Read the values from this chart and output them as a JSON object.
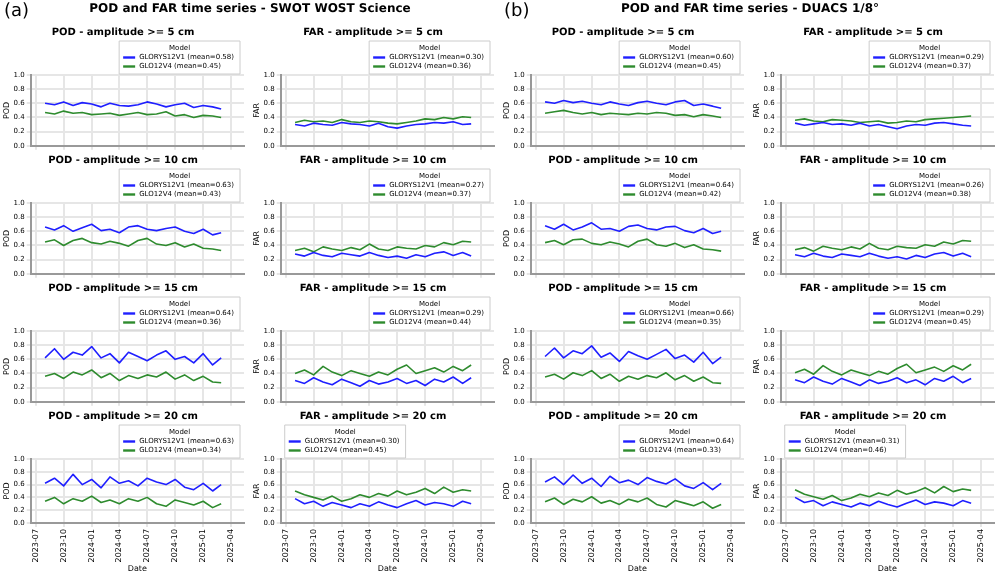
{
  "chart_data": [
    {
      "type": "line",
      "title": "POD - amplitude >= 5 cm",
      "ylabel": "POD",
      "annotations": [
        "(a)",
        "POD and FAR time series - SWOT WOST Science"
      ],
      "legend_title": "Model",
      "legend": "top right",
      "grid": true,
      "tick_labels": "y",
      "x": [
        "2023-08",
        "2023-09",
        "2023-10",
        "2023-11",
        "2023-12",
        "2024-01",
        "2024-02",
        "2024-03",
        "2024-04",
        "2024-05",
        "2024-06",
        "2024-07",
        "2024-08",
        "2024-09",
        "2024-10",
        "2024-11",
        "2024-12",
        "2025-01",
        "2025-02",
        "2025-03"
      ],
      "xlim": [
        "2023-06-15",
        "2025-05-15"
      ],
      "xticks": [
        "2023-07",
        "2023-10",
        "2024-01",
        "2024-04",
        "2024-07",
        "2024-10",
        "2025-01",
        "2025-04"
      ],
      "ylim": [
        0,
        1
      ],
      "yticks": [
        {
          "value": 0,
          "label": "0.0"
        },
        {
          "value": 0.2,
          "label": "0.2"
        },
        {
          "value": 0.4,
          "label": "0.4"
        },
        {
          "value": 0.6,
          "label": "0.6"
        },
        {
          "value": 0.8,
          "label": "0.8"
        },
        {
          "value": 1,
          "label": "1.0"
        }
      ],
      "series": [
        {
          "name": "GLORYS12V1 (mean=0.58)",
          "color": "#1f1fff",
          "values": [
            0.6,
            0.58,
            0.62,
            0.57,
            0.61,
            0.59,
            0.55,
            0.6,
            0.57,
            0.56,
            0.58,
            0.62,
            0.59,
            0.55,
            0.58,
            0.6,
            0.54,
            0.57,
            0.55,
            0.52
          ]
        },
        {
          "name": "GLO12V4 (mean=0.45)",
          "color": "#2e8b2e",
          "values": [
            0.47,
            0.45,
            0.49,
            0.46,
            0.47,
            0.44,
            0.45,
            0.46,
            0.43,
            0.45,
            0.47,
            0.44,
            0.45,
            0.48,
            0.42,
            0.44,
            0.4,
            0.43,
            0.42,
            0.4
          ]
        }
      ]
    },
    {
      "type": "line",
      "title": "FAR - amplitude >= 5 cm",
      "ylabel": "FAR",
      "legend_title": "Model",
      "legend": "top right",
      "grid": true,
      "tick_labels": "y",
      "x": [
        "2023-08",
        "2023-09",
        "2023-10",
        "2023-11",
        "2023-12",
        "2024-01",
        "2024-02",
        "2024-03",
        "2024-04",
        "2024-05",
        "2024-06",
        "2024-07",
        "2024-08",
        "2024-09",
        "2024-10",
        "2024-11",
        "2024-12",
        "2025-01",
        "2025-02",
        "2025-03"
      ],
      "xlim": [
        "2023-06-15",
        "2025-05-15"
      ],
      "xticks": [
        "2023-07",
        "2023-10",
        "2024-01",
        "2024-04",
        "2024-07",
        "2024-10",
        "2025-01",
        "2025-04"
      ],
      "ylim": [
        0,
        1
      ],
      "yticks": [
        {
          "value": 0,
          "label": "0.0"
        },
        {
          "value": 0.2,
          "label": "0.2"
        },
        {
          "value": 0.4,
          "label": "0.4"
        },
        {
          "value": 0.6,
          "label": "0.6"
        },
        {
          "value": 0.8,
          "label": "0.8"
        },
        {
          "value": 1,
          "label": "1.0"
        }
      ],
      "series": [
        {
          "name": "GLORYS12V1 (mean=0.30)",
          "color": "#1f1fff",
          "values": [
            0.3,
            0.28,
            0.32,
            0.3,
            0.29,
            0.33,
            0.31,
            0.3,
            0.28,
            0.32,
            0.27,
            0.25,
            0.28,
            0.3,
            0.31,
            0.33,
            0.32,
            0.34,
            0.3,
            0.31
          ]
        },
        {
          "name": "GLO12V4 (mean=0.36)",
          "color": "#2e8b2e",
          "values": [
            0.33,
            0.36,
            0.34,
            0.35,
            0.33,
            0.37,
            0.34,
            0.33,
            0.35,
            0.34,
            0.32,
            0.31,
            0.33,
            0.35,
            0.38,
            0.37,
            0.4,
            0.38,
            0.41,
            0.4
          ]
        }
      ]
    },
    {
      "type": "line",
      "title": "POD - amplitude >= 5 cm",
      "ylabel": "POD",
      "annotations": [
        "(b)",
        "POD and FAR time series - DUACS 1/8°"
      ],
      "legend_title": "Model",
      "legend": "top right",
      "grid": true,
      "tick_labels": "y",
      "x": [
        "2023-08",
        "2023-09",
        "2023-10",
        "2023-11",
        "2023-12",
        "2024-01",
        "2024-02",
        "2024-03",
        "2024-04",
        "2024-05",
        "2024-06",
        "2024-07",
        "2024-08",
        "2024-09",
        "2024-10",
        "2024-11",
        "2024-12",
        "2025-01",
        "2025-02",
        "2025-03"
      ],
      "xlim": [
        "2023-06-15",
        "2025-05-15"
      ],
      "xticks": [
        "2023-07",
        "2023-10",
        "2024-01",
        "2024-04",
        "2024-07",
        "2024-10",
        "2025-01",
        "2025-04"
      ],
      "ylim": [
        0,
        1
      ],
      "yticks": [
        {
          "value": 0,
          "label": "0.0"
        },
        {
          "value": 0.2,
          "label": "0.2"
        },
        {
          "value": 0.4,
          "label": "0.4"
        },
        {
          "value": 0.6,
          "label": "0.6"
        },
        {
          "value": 0.8,
          "label": "0.8"
        },
        {
          "value": 1,
          "label": "1.0"
        }
      ],
      "series": [
        {
          "name": "GLORYS12V1 (mean=0.60)",
          "color": "#1f1fff",
          "values": [
            0.62,
            0.6,
            0.64,
            0.61,
            0.63,
            0.6,
            0.58,
            0.62,
            0.59,
            0.57,
            0.61,
            0.63,
            0.6,
            0.58,
            0.62,
            0.64,
            0.57,
            0.59,
            0.56,
            0.53
          ]
        },
        {
          "name": "GLO12V4 (mean=0.45)",
          "color": "#2e8b2e",
          "values": [
            0.46,
            0.48,
            0.5,
            0.47,
            0.45,
            0.47,
            0.44,
            0.46,
            0.45,
            0.44,
            0.46,
            0.45,
            0.47,
            0.46,
            0.43,
            0.44,
            0.41,
            0.44,
            0.42,
            0.4
          ]
        }
      ]
    },
    {
      "type": "line",
      "title": "FAR - amplitude >= 5 cm",
      "ylabel": "FAR",
      "legend_title": "Model",
      "legend": "top right",
      "grid": true,
      "tick_labels": "y",
      "x": [
        "2023-08",
        "2023-09",
        "2023-10",
        "2023-11",
        "2023-12",
        "2024-01",
        "2024-02",
        "2024-03",
        "2024-04",
        "2024-05",
        "2024-06",
        "2024-07",
        "2024-08",
        "2024-09",
        "2024-10",
        "2024-11",
        "2024-12",
        "2025-01",
        "2025-02",
        "2025-03"
      ],
      "xlim": [
        "2023-06-15",
        "2025-05-15"
      ],
      "xticks": [
        "2023-07",
        "2023-10",
        "2024-01",
        "2024-04",
        "2024-07",
        "2024-10",
        "2025-01",
        "2025-04"
      ],
      "ylim": [
        0,
        1
      ],
      "yticks": [
        {
          "value": 0,
          "label": "0.0"
        },
        {
          "value": 0.2,
          "label": "0.2"
        },
        {
          "value": 0.4,
          "label": "0.4"
        },
        {
          "value": 0.6,
          "label": "0.6"
        },
        {
          "value": 0.8,
          "label": "0.8"
        },
        {
          "value": 1,
          "label": "1.0"
        }
      ],
      "series": [
        {
          "name": "GLORYS12V1 (mean=0.29)",
          "color": "#1f1fff",
          "values": [
            0.32,
            0.29,
            0.31,
            0.33,
            0.3,
            0.31,
            0.29,
            0.32,
            0.28,
            0.3,
            0.27,
            0.24,
            0.28,
            0.3,
            0.29,
            0.32,
            0.33,
            0.31,
            0.29,
            0.28
          ]
        },
        {
          "name": "GLO12V4 (mean=0.37)",
          "color": "#2e8b2e",
          "values": [
            0.36,
            0.38,
            0.35,
            0.34,
            0.37,
            0.36,
            0.35,
            0.33,
            0.34,
            0.35,
            0.32,
            0.33,
            0.35,
            0.34,
            0.37,
            0.38,
            0.39,
            0.4,
            0.41,
            0.42
          ]
        }
      ]
    },
    {
      "type": "line",
      "title": "POD - amplitude >= 10 cm",
      "ylabel": "POD",
      "legend_title": "Model",
      "legend": "top right",
      "grid": true,
      "tick_labels": "y",
      "x": [
        "2023-08",
        "2023-09",
        "2023-10",
        "2023-11",
        "2023-12",
        "2024-01",
        "2024-02",
        "2024-03",
        "2024-04",
        "2024-05",
        "2024-06",
        "2024-07",
        "2024-08",
        "2024-09",
        "2024-10",
        "2024-11",
        "2024-12",
        "2025-01",
        "2025-02",
        "2025-03"
      ],
      "xlim": [
        "2023-06-15",
        "2025-05-15"
      ],
      "xticks": [
        "2023-07",
        "2023-10",
        "2024-01",
        "2024-04",
        "2024-07",
        "2024-10",
        "2025-01",
        "2025-04"
      ],
      "ylim": [
        0,
        1
      ],
      "yticks": [
        {
          "value": 0,
          "label": "0.0"
        },
        {
          "value": 0.2,
          "label": "0.2"
        },
        {
          "value": 0.4,
          "label": "0.4"
        },
        {
          "value": 0.6,
          "label": "0.6"
        },
        {
          "value": 0.8,
          "label": "0.8"
        },
        {
          "value": 1,
          "label": "1.0"
        }
      ],
      "series": [
        {
          "name": "GLORYS12V1 (mean=0.63)",
          "color": "#1f1fff",
          "values": [
            0.66,
            0.62,
            0.68,
            0.6,
            0.65,
            0.7,
            0.61,
            0.63,
            0.58,
            0.66,
            0.68,
            0.63,
            0.61,
            0.64,
            0.66,
            0.6,
            0.57,
            0.63,
            0.55,
            0.58
          ]
        },
        {
          "name": "GLO12V4 (mean=0.43)",
          "color": "#2e8b2e",
          "values": [
            0.45,
            0.48,
            0.4,
            0.47,
            0.5,
            0.44,
            0.42,
            0.46,
            0.43,
            0.39,
            0.47,
            0.5,
            0.42,
            0.4,
            0.44,
            0.38,
            0.42,
            0.36,
            0.35,
            0.33
          ]
        }
      ]
    },
    {
      "type": "line",
      "title": "FAR - amplitude >= 10 cm",
      "ylabel": "FAR",
      "legend_title": "Model",
      "legend": "top right",
      "grid": true,
      "tick_labels": "y",
      "x": [
        "2023-08",
        "2023-09",
        "2023-10",
        "2023-11",
        "2023-12",
        "2024-01",
        "2024-02",
        "2024-03",
        "2024-04",
        "2024-05",
        "2024-06",
        "2024-07",
        "2024-08",
        "2024-09",
        "2024-10",
        "2024-11",
        "2024-12",
        "2025-01",
        "2025-02",
        "2025-03"
      ],
      "xlim": [
        "2023-06-15",
        "2025-05-15"
      ],
      "xticks": [
        "2023-07",
        "2023-10",
        "2024-01",
        "2024-04",
        "2024-07",
        "2024-10",
        "2025-01",
        "2025-04"
      ],
      "ylim": [
        0,
        1
      ],
      "yticks": [
        {
          "value": 0,
          "label": "0.0"
        },
        {
          "value": 0.2,
          "label": "0.2"
        },
        {
          "value": 0.4,
          "label": "0.4"
        },
        {
          "value": 0.6,
          "label": "0.6"
        },
        {
          "value": 0.8,
          "label": "0.8"
        },
        {
          "value": 1,
          "label": "1.0"
        }
      ],
      "series": [
        {
          "name": "GLORYS12V1 (mean=0.27)",
          "color": "#1f1fff",
          "values": [
            0.28,
            0.25,
            0.3,
            0.26,
            0.24,
            0.29,
            0.27,
            0.25,
            0.3,
            0.26,
            0.23,
            0.25,
            0.22,
            0.27,
            0.24,
            0.29,
            0.31,
            0.26,
            0.3,
            0.25
          ]
        },
        {
          "name": "GLO12V4 (mean=0.37)",
          "color": "#2e8b2e",
          "values": [
            0.33,
            0.36,
            0.31,
            0.38,
            0.35,
            0.33,
            0.37,
            0.34,
            0.42,
            0.35,
            0.33,
            0.38,
            0.36,
            0.35,
            0.4,
            0.38,
            0.44,
            0.41,
            0.46,
            0.45
          ]
        }
      ]
    },
    {
      "type": "line",
      "title": "POD - amplitude >= 10 cm",
      "ylabel": "POD",
      "legend_title": "Model",
      "legend": "top right",
      "grid": true,
      "tick_labels": "y",
      "x": [
        "2023-08",
        "2023-09",
        "2023-10",
        "2023-11",
        "2023-12",
        "2024-01",
        "2024-02",
        "2024-03",
        "2024-04",
        "2024-05",
        "2024-06",
        "2024-07",
        "2024-08",
        "2024-09",
        "2024-10",
        "2024-11",
        "2024-12",
        "2025-01",
        "2025-02",
        "2025-03"
      ],
      "xlim": [
        "2023-06-15",
        "2025-05-15"
      ],
      "xticks": [
        "2023-07",
        "2023-10",
        "2024-01",
        "2024-04",
        "2024-07",
        "2024-10",
        "2025-01",
        "2025-04"
      ],
      "ylim": [
        0,
        1
      ],
      "yticks": [
        {
          "value": 0,
          "label": "0.0"
        },
        {
          "value": 0.2,
          "label": "0.2"
        },
        {
          "value": 0.4,
          "label": "0.4"
        },
        {
          "value": 0.6,
          "label": "0.6"
        },
        {
          "value": 0.8,
          "label": "0.8"
        },
        {
          "value": 1,
          "label": "1.0"
        }
      ],
      "series": [
        {
          "name": "GLORYS12V1 (mean=0.64)",
          "color": "#1f1fff",
          "values": [
            0.68,
            0.63,
            0.7,
            0.62,
            0.66,
            0.72,
            0.63,
            0.64,
            0.6,
            0.67,
            0.69,
            0.64,
            0.62,
            0.66,
            0.67,
            0.61,
            0.58,
            0.64,
            0.57,
            0.6
          ]
        },
        {
          "name": "GLO12V4 (mean=0.42)",
          "color": "#2e8b2e",
          "values": [
            0.44,
            0.47,
            0.41,
            0.48,
            0.49,
            0.43,
            0.41,
            0.45,
            0.42,
            0.38,
            0.46,
            0.49,
            0.41,
            0.39,
            0.43,
            0.37,
            0.41,
            0.35,
            0.34,
            0.32
          ]
        }
      ]
    },
    {
      "type": "line",
      "title": "FAR - amplitude >= 10 cm",
      "ylabel": "FAR",
      "legend_title": "Model",
      "legend": "top right",
      "grid": true,
      "tick_labels": "y",
      "x": [
        "2023-08",
        "2023-09",
        "2023-10",
        "2023-11",
        "2023-12",
        "2024-01",
        "2024-02",
        "2024-03",
        "2024-04",
        "2024-05",
        "2024-06",
        "2024-07",
        "2024-08",
        "2024-09",
        "2024-10",
        "2024-11",
        "2024-12",
        "2025-01",
        "2025-02",
        "2025-03"
      ],
      "xlim": [
        "2023-06-15",
        "2025-05-15"
      ],
      "xticks": [
        "2023-07",
        "2023-10",
        "2024-01",
        "2024-04",
        "2024-07",
        "2024-10",
        "2025-01",
        "2025-04"
      ],
      "ylim": [
        0,
        1
      ],
      "yticks": [
        {
          "value": 0,
          "label": "0.0"
        },
        {
          "value": 0.2,
          "label": "0.2"
        },
        {
          "value": 0.4,
          "label": "0.4"
        },
        {
          "value": 0.6,
          "label": "0.6"
        },
        {
          "value": 0.8,
          "label": "0.8"
        },
        {
          "value": 1,
          "label": "1.0"
        }
      ],
      "series": [
        {
          "name": "GLORYS12V1 (mean=0.26)",
          "color": "#1f1fff",
          "values": [
            0.27,
            0.24,
            0.29,
            0.25,
            0.23,
            0.28,
            0.26,
            0.24,
            0.29,
            0.25,
            0.22,
            0.24,
            0.21,
            0.26,
            0.23,
            0.28,
            0.3,
            0.25,
            0.29,
            0.24
          ]
        },
        {
          "name": "GLO12V4 (mean=0.38)",
          "color": "#2e8b2e",
          "values": [
            0.34,
            0.37,
            0.32,
            0.39,
            0.36,
            0.34,
            0.38,
            0.35,
            0.43,
            0.36,
            0.34,
            0.39,
            0.37,
            0.36,
            0.41,
            0.39,
            0.45,
            0.42,
            0.47,
            0.46
          ]
        }
      ]
    },
    {
      "type": "line",
      "title": "POD - amplitude >= 15 cm",
      "ylabel": "POD",
      "legend_title": "Model",
      "legend": "top right",
      "grid": true,
      "tick_labels": "y",
      "x": [
        "2023-08",
        "2023-09",
        "2023-10",
        "2023-11",
        "2023-12",
        "2024-01",
        "2024-02",
        "2024-03",
        "2024-04",
        "2024-05",
        "2024-06",
        "2024-07",
        "2024-08",
        "2024-09",
        "2024-10",
        "2024-11",
        "2024-12",
        "2025-01",
        "2025-02",
        "2025-03"
      ],
      "xlim": [
        "2023-06-15",
        "2025-05-15"
      ],
      "xticks": [
        "2023-07",
        "2023-10",
        "2024-01",
        "2024-04",
        "2024-07",
        "2024-10",
        "2025-01",
        "2025-04"
      ],
      "ylim": [
        0,
        1
      ],
      "yticks": [
        {
          "value": 0,
          "label": "0.0"
        },
        {
          "value": 0.2,
          "label": "0.2"
        },
        {
          "value": 0.4,
          "label": "0.4"
        },
        {
          "value": 0.6,
          "label": "0.6"
        },
        {
          "value": 0.8,
          "label": "0.8"
        },
        {
          "value": 1,
          "label": "1.0"
        }
      ],
      "series": [
        {
          "name": "GLORYS12V1 (mean=0.64)",
          "color": "#1f1fff",
          "values": [
            0.62,
            0.75,
            0.6,
            0.7,
            0.66,
            0.78,
            0.62,
            0.68,
            0.55,
            0.7,
            0.64,
            0.58,
            0.66,
            0.72,
            0.6,
            0.64,
            0.55,
            0.68,
            0.52,
            0.62
          ]
        },
        {
          "name": "GLO12V4 (mean=0.36)",
          "color": "#2e8b2e",
          "values": [
            0.36,
            0.4,
            0.33,
            0.42,
            0.38,
            0.45,
            0.34,
            0.4,
            0.3,
            0.37,
            0.33,
            0.38,
            0.35,
            0.42,
            0.32,
            0.38,
            0.3,
            0.36,
            0.28,
            0.27
          ]
        }
      ]
    },
    {
      "type": "line",
      "title": "FAR - amplitude >= 15 cm",
      "ylabel": "FAR",
      "legend_title": "Model",
      "legend": "top right",
      "grid": true,
      "tick_labels": "y",
      "x": [
        "2023-08",
        "2023-09",
        "2023-10",
        "2023-11",
        "2023-12",
        "2024-01",
        "2024-02",
        "2024-03",
        "2024-04",
        "2024-05",
        "2024-06",
        "2024-07",
        "2024-08",
        "2024-09",
        "2024-10",
        "2024-11",
        "2024-12",
        "2025-01",
        "2025-02",
        "2025-03"
      ],
      "xlim": [
        "2023-06-15",
        "2025-05-15"
      ],
      "xticks": [
        "2023-07",
        "2023-10",
        "2024-01",
        "2024-04",
        "2024-07",
        "2024-10",
        "2025-01",
        "2025-04"
      ],
      "ylim": [
        0,
        1
      ],
      "yticks": [
        {
          "value": 0,
          "label": "0.0"
        },
        {
          "value": 0.2,
          "label": "0.2"
        },
        {
          "value": 0.4,
          "label": "0.4"
        },
        {
          "value": 0.6,
          "label": "0.6"
        },
        {
          "value": 0.8,
          "label": "0.8"
        },
        {
          "value": 1,
          "label": "1.0"
        }
      ],
      "series": [
        {
          "name": "GLORYS12V1 (mean=0.29)",
          "color": "#1f1fff",
          "values": [
            0.3,
            0.26,
            0.34,
            0.28,
            0.24,
            0.32,
            0.27,
            0.22,
            0.3,
            0.25,
            0.28,
            0.33,
            0.26,
            0.3,
            0.23,
            0.32,
            0.28,
            0.35,
            0.26,
            0.34
          ]
        },
        {
          "name": "GLO12V4 (mean=0.44)",
          "color": "#2e8b2e",
          "values": [
            0.4,
            0.45,
            0.38,
            0.5,
            0.42,
            0.37,
            0.44,
            0.4,
            0.36,
            0.42,
            0.38,
            0.46,
            0.52,
            0.4,
            0.44,
            0.48,
            0.42,
            0.5,
            0.44,
            0.52
          ]
        }
      ]
    },
    {
      "type": "line",
      "title": "POD - amplitude >= 15 cm",
      "ylabel": "POD",
      "legend_title": "Model",
      "legend": "top right",
      "grid": true,
      "tick_labels": "y",
      "x": [
        "2023-08",
        "2023-09",
        "2023-10",
        "2023-11",
        "2023-12",
        "2024-01",
        "2024-02",
        "2024-03",
        "2024-04",
        "2024-05",
        "2024-06",
        "2024-07",
        "2024-08",
        "2024-09",
        "2024-10",
        "2024-11",
        "2024-12",
        "2025-01",
        "2025-02",
        "2025-03"
      ],
      "xlim": [
        "2023-06-15",
        "2025-05-15"
      ],
      "xticks": [
        "2023-07",
        "2023-10",
        "2024-01",
        "2024-04",
        "2024-07",
        "2024-10",
        "2025-01",
        "2025-04"
      ],
      "ylim": [
        0,
        1
      ],
      "yticks": [
        {
          "value": 0,
          "label": "0.0"
        },
        {
          "value": 0.2,
          "label": "0.2"
        },
        {
          "value": 0.4,
          "label": "0.4"
        },
        {
          "value": 0.6,
          "label": "0.6"
        },
        {
          "value": 0.8,
          "label": "0.8"
        },
        {
          "value": 1,
          "label": "1.0"
        }
      ],
      "series": [
        {
          "name": "GLORYS12V1 (mean=0.66)",
          "color": "#1f1fff",
          "values": [
            0.64,
            0.76,
            0.62,
            0.72,
            0.68,
            0.79,
            0.63,
            0.69,
            0.57,
            0.71,
            0.65,
            0.6,
            0.67,
            0.74,
            0.61,
            0.66,
            0.56,
            0.7,
            0.54,
            0.63
          ]
        },
        {
          "name": "GLO12V4 (mean=0.35)",
          "color": "#2e8b2e",
          "values": [
            0.35,
            0.39,
            0.32,
            0.41,
            0.37,
            0.44,
            0.33,
            0.39,
            0.29,
            0.36,
            0.32,
            0.37,
            0.34,
            0.41,
            0.31,
            0.37,
            0.29,
            0.35,
            0.27,
            0.26
          ]
        }
      ]
    },
    {
      "type": "line",
      "title": "FAR - amplitude >= 15 cm",
      "ylabel": "FAR",
      "legend_title": "Model",
      "legend": "top right",
      "grid": true,
      "tick_labels": "y",
      "x": [
        "2023-08",
        "2023-09",
        "2023-10",
        "2023-11",
        "2023-12",
        "2024-01",
        "2024-02",
        "2024-03",
        "2024-04",
        "2024-05",
        "2024-06",
        "2024-07",
        "2024-08",
        "2024-09",
        "2024-10",
        "2024-11",
        "2024-12",
        "2025-01",
        "2025-02",
        "2025-03"
      ],
      "xlim": [
        "2023-06-15",
        "2025-05-15"
      ],
      "xticks": [
        "2023-07",
        "2023-10",
        "2024-01",
        "2024-04",
        "2024-07",
        "2024-10",
        "2025-01",
        "2025-04"
      ],
      "ylim": [
        0,
        1
      ],
      "yticks": [
        {
          "value": 0,
          "label": "0.0"
        },
        {
          "value": 0.2,
          "label": "0.2"
        },
        {
          "value": 0.4,
          "label": "0.4"
        },
        {
          "value": 0.6,
          "label": "0.6"
        },
        {
          "value": 0.8,
          "label": "0.8"
        },
        {
          "value": 1,
          "label": "1.0"
        }
      ],
      "series": [
        {
          "name": "GLORYS12V1 (mean=0.29)",
          "color": "#1f1fff",
          "values": [
            0.31,
            0.27,
            0.35,
            0.29,
            0.25,
            0.33,
            0.28,
            0.23,
            0.31,
            0.26,
            0.29,
            0.34,
            0.27,
            0.31,
            0.24,
            0.33,
            0.29,
            0.36,
            0.27,
            0.33
          ]
        },
        {
          "name": "GLO12V4 (mean=0.45)",
          "color": "#2e8b2e",
          "values": [
            0.41,
            0.46,
            0.39,
            0.51,
            0.43,
            0.38,
            0.45,
            0.41,
            0.37,
            0.43,
            0.39,
            0.47,
            0.53,
            0.41,
            0.45,
            0.49,
            0.43,
            0.51,
            0.45,
            0.53
          ]
        }
      ]
    },
    {
      "type": "line",
      "title": "POD - amplitude >= 20 cm",
      "ylabel": "POD",
      "xlabel": "Date",
      "legend_title": "Model",
      "legend": "top right",
      "grid": true,
      "x": [
        "2023-08",
        "2023-09",
        "2023-10",
        "2023-11",
        "2023-12",
        "2024-01",
        "2024-02",
        "2024-03",
        "2024-04",
        "2024-05",
        "2024-06",
        "2024-07",
        "2024-08",
        "2024-09",
        "2024-10",
        "2024-11",
        "2024-12",
        "2025-01",
        "2025-02",
        "2025-03"
      ],
      "xlim": [
        "2023-06-15",
        "2025-05-15"
      ],
      "xticks": [
        "2023-07",
        "2023-10",
        "2024-01",
        "2024-04",
        "2024-07",
        "2024-10",
        "2025-01",
        "2025-04"
      ],
      "ylim": [
        0,
        1
      ],
      "yticks": [
        {
          "value": 0,
          "label": "0.0"
        },
        {
          "value": 0.2,
          "label": "0.2"
        },
        {
          "value": 0.4,
          "label": "0.4"
        },
        {
          "value": 0.6,
          "label": "0.6"
        },
        {
          "value": 0.8,
          "label": "0.8"
        },
        {
          "value": 1,
          "label": "1.0"
        }
      ],
      "series": [
        {
          "name": "GLORYS12V1 (mean=0.63)",
          "color": "#1f1fff",
          "values": [
            0.62,
            0.7,
            0.58,
            0.76,
            0.6,
            0.68,
            0.55,
            0.72,
            0.62,
            0.66,
            0.58,
            0.7,
            0.64,
            0.6,
            0.68,
            0.56,
            0.52,
            0.62,
            0.5,
            0.6
          ]
        },
        {
          "name": "GLO12V4 (mean=0.34)",
          "color": "#2e8b2e",
          "values": [
            0.34,
            0.4,
            0.3,
            0.38,
            0.34,
            0.42,
            0.32,
            0.36,
            0.3,
            0.38,
            0.34,
            0.4,
            0.3,
            0.26,
            0.36,
            0.32,
            0.28,
            0.34,
            0.24,
            0.3
          ]
        }
      ]
    },
    {
      "type": "line",
      "title": "FAR - amplitude >= 20 cm",
      "ylabel": "FAR",
      "xlabel": "Date",
      "legend_title": "Model",
      "legend": "top left",
      "grid": true,
      "x": [
        "2023-08",
        "2023-09",
        "2023-10",
        "2023-11",
        "2023-12",
        "2024-01",
        "2024-02",
        "2024-03",
        "2024-04",
        "2024-05",
        "2024-06",
        "2024-07",
        "2024-08",
        "2024-09",
        "2024-10",
        "2024-11",
        "2024-12",
        "2025-01",
        "2025-02",
        "2025-03"
      ],
      "xlim": [
        "2023-06-15",
        "2025-05-15"
      ],
      "xticks": [
        "2023-07",
        "2023-10",
        "2024-01",
        "2024-04",
        "2024-07",
        "2024-10",
        "2025-01",
        "2025-04"
      ],
      "ylim": [
        0,
        1
      ],
      "yticks": [
        {
          "value": 0,
          "label": "0.0"
        },
        {
          "value": 0.2,
          "label": "0.2"
        },
        {
          "value": 0.4,
          "label": "0.4"
        },
        {
          "value": 0.6,
          "label": "0.6"
        },
        {
          "value": 0.8,
          "label": "0.8"
        },
        {
          "value": 1,
          "label": "1.0"
        }
      ],
      "series": [
        {
          "name": "GLORYS12V1 (mean=0.30)",
          "color": "#1f1fff",
          "values": [
            0.38,
            0.3,
            0.34,
            0.26,
            0.32,
            0.28,
            0.24,
            0.3,
            0.26,
            0.33,
            0.28,
            0.24,
            0.3,
            0.35,
            0.28,
            0.32,
            0.3,
            0.26,
            0.34,
            0.3
          ]
        },
        {
          "name": "GLO12V4 (mean=0.45)",
          "color": "#2e8b2e",
          "values": [
            0.5,
            0.44,
            0.4,
            0.36,
            0.42,
            0.34,
            0.38,
            0.44,
            0.4,
            0.46,
            0.42,
            0.5,
            0.44,
            0.48,
            0.54,
            0.46,
            0.56,
            0.48,
            0.52,
            0.5
          ]
        }
      ]
    },
    {
      "type": "line",
      "title": "POD - amplitude >= 20 cm",
      "ylabel": "POD",
      "xlabel": "Date",
      "legend_title": "Model",
      "legend": "top right",
      "grid": true,
      "x": [
        "2023-08",
        "2023-09",
        "2023-10",
        "2023-11",
        "2023-12",
        "2024-01",
        "2024-02",
        "2024-03",
        "2024-04",
        "2024-05",
        "2024-06",
        "2024-07",
        "2024-08",
        "2024-09",
        "2024-10",
        "2024-11",
        "2024-12",
        "2025-01",
        "2025-02",
        "2025-03"
      ],
      "xlim": [
        "2023-06-15",
        "2025-05-15"
      ],
      "xticks": [
        "2023-07",
        "2023-10",
        "2024-01",
        "2024-04",
        "2024-07",
        "2024-10",
        "2025-01",
        "2025-04"
      ],
      "ylim": [
        0,
        1
      ],
      "yticks": [
        {
          "value": 0,
          "label": "0.0"
        },
        {
          "value": 0.2,
          "label": "0.2"
        },
        {
          "value": 0.4,
          "label": "0.4"
        },
        {
          "value": 0.6,
          "label": "0.6"
        },
        {
          "value": 0.8,
          "label": "0.8"
        },
        {
          "value": 1,
          "label": "1.0"
        }
      ],
      "series": [
        {
          "name": "GLORYS12V1 (mean=0.64)",
          "color": "#1f1fff",
          "values": [
            0.64,
            0.72,
            0.6,
            0.75,
            0.62,
            0.7,
            0.57,
            0.73,
            0.63,
            0.67,
            0.6,
            0.71,
            0.65,
            0.61,
            0.69,
            0.58,
            0.54,
            0.63,
            0.52,
            0.62
          ]
        },
        {
          "name": "GLO12V4 (mean=0.33)",
          "color": "#2e8b2e",
          "values": [
            0.33,
            0.39,
            0.29,
            0.37,
            0.33,
            0.41,
            0.31,
            0.35,
            0.29,
            0.37,
            0.33,
            0.39,
            0.29,
            0.25,
            0.35,
            0.31,
            0.27,
            0.33,
            0.23,
            0.29
          ]
        }
      ]
    },
    {
      "type": "line",
      "title": "FAR - amplitude >= 20 cm",
      "ylabel": "FAR",
      "xlabel": "Date",
      "legend_title": "Model",
      "legend": "top left",
      "grid": true,
      "x": [
        "2023-08",
        "2023-09",
        "2023-10",
        "2023-11",
        "2023-12",
        "2024-01",
        "2024-02",
        "2024-03",
        "2024-04",
        "2024-05",
        "2024-06",
        "2024-07",
        "2024-08",
        "2024-09",
        "2024-10",
        "2024-11",
        "2024-12",
        "2025-01",
        "2025-02",
        "2025-03"
      ],
      "xlim": [
        "2023-06-15",
        "2025-05-15"
      ],
      "xticks": [
        "2023-07",
        "2023-10",
        "2024-01",
        "2024-04",
        "2024-07",
        "2024-10",
        "2025-01",
        "2025-04"
      ],
      "ylim": [
        0,
        1
      ],
      "yticks": [
        {
          "value": 0,
          "label": "0.0"
        },
        {
          "value": 0.2,
          "label": "0.2"
        },
        {
          "value": 0.4,
          "label": "0.4"
        },
        {
          "value": 0.6,
          "label": "0.6"
        },
        {
          "value": 0.8,
          "label": "0.8"
        },
        {
          "value": 1,
          "label": "1.0"
        }
      ],
      "series": [
        {
          "name": "GLORYS12V1 (mean=0.31)",
          "color": "#1f1fff",
          "values": [
            0.4,
            0.32,
            0.35,
            0.27,
            0.33,
            0.29,
            0.25,
            0.31,
            0.27,
            0.34,
            0.29,
            0.25,
            0.31,
            0.36,
            0.29,
            0.33,
            0.31,
            0.27,
            0.35,
            0.31
          ]
        },
        {
          "name": "GLO12V4 (mean=0.46)",
          "color": "#2e8b2e",
          "values": [
            0.52,
            0.45,
            0.41,
            0.37,
            0.43,
            0.35,
            0.39,
            0.45,
            0.41,
            0.47,
            0.43,
            0.51,
            0.45,
            0.49,
            0.55,
            0.47,
            0.57,
            0.49,
            0.53,
            0.51
          ]
        }
      ]
    }
  ]
}
